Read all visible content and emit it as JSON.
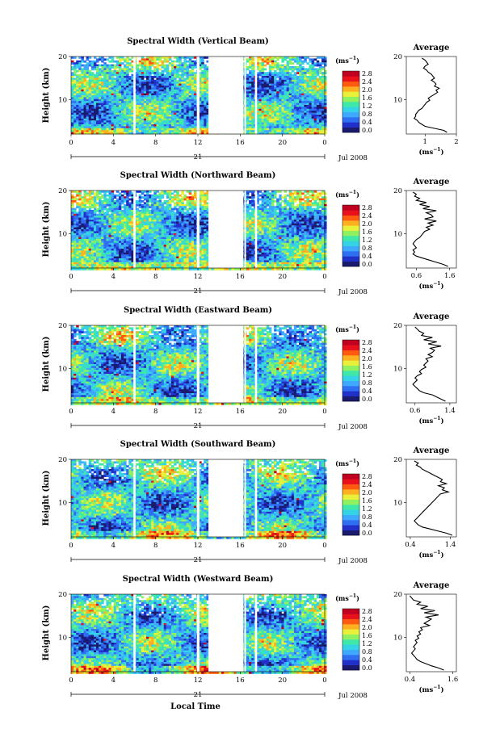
{
  "panels": [
    {
      "title": "Spectral Width (Vertical Beam)",
      "avg_ticks": [
        "1",
        "2"
      ],
      "avg_xlim": [
        0.4,
        2.0
      ],
      "avg_tick_values": [
        1,
        2
      ],
      "profile": [
        0.9,
        1.0,
        1.05,
        1.1,
        1.0,
        0.95,
        1.05,
        1.1,
        1.2,
        1.25,
        1.3,
        1.2,
        1.3,
        1.35,
        1.3,
        1.45,
        1.35,
        1.4,
        1.3,
        1.2,
        1.1,
        1.15,
        1.05,
        1.0,
        0.95,
        0.9,
        0.8,
        0.75,
        0.7,
        0.7,
        0.65,
        0.75,
        0.8,
        0.9,
        1.0,
        1.3,
        1.6,
        1.7
      ]
    },
    {
      "title": "Spectral Width (Northward Beam)",
      "avg_ticks": [
        "0.6",
        "1.6"
      ],
      "avg_xlim": [
        0.3,
        1.8
      ],
      "avg_tick_values": [
        0.6,
        1.6
      ],
      "profile": [
        0.5,
        0.6,
        0.55,
        0.7,
        0.6,
        0.9,
        0.7,
        1.0,
        0.8,
        1.2,
        0.9,
        1.05,
        1.1,
        0.85,
        1.2,
        0.95,
        1.1,
        0.9,
        1.0,
        0.85,
        0.8,
        0.75,
        0.7,
        0.6,
        0.55,
        0.5,
        0.55,
        0.6,
        0.5,
        0.55,
        0.5,
        0.6,
        0.8,
        1.0,
        1.2,
        1.4,
        1.55
      ]
    },
    {
      "title": "Spectral Width (Eastward Beam)",
      "avg_ticks": [
        "0.6",
        "1.4"
      ],
      "avg_xlim": [
        0.4,
        1.55
      ],
      "avg_tick_values": [
        0.6,
        1.4
      ],
      "profile": [
        0.6,
        0.65,
        0.7,
        0.8,
        0.75,
        1.0,
        0.8,
        1.1,
        0.9,
        1.2,
        0.95,
        1.05,
        1.0,
        0.9,
        1.0,
        0.85,
        0.9,
        0.85,
        0.8,
        0.85,
        0.75,
        0.7,
        0.75,
        0.65,
        0.6,
        0.65,
        0.6,
        0.55,
        0.6,
        0.65,
        0.7,
        0.8,
        1.0,
        1.1,
        1.2,
        1.3
      ]
    },
    {
      "title": "Spectral Width (Southward Beam)",
      "avg_ticks": [
        "0.4",
        "1.4"
      ],
      "avg_xlim": [
        0.3,
        1.55
      ],
      "avg_tick_values": [
        0.4,
        1.4
      ],
      "profile": [
        0.5,
        0.6,
        0.55,
        0.65,
        0.7,
        0.8,
        0.9,
        1.0,
        1.1,
        1.2,
        1.15,
        1.3,
        1.1,
        1.25,
        1.2,
        1.35,
        1.15,
        1.1,
        1.05,
        1.0,
        0.95,
        0.9,
        0.85,
        0.8,
        0.75,
        0.7,
        0.65,
        0.6,
        0.55,
        0.5,
        0.55,
        0.6,
        0.7,
        0.9,
        1.1,
        1.3,
        1.45
      ]
    },
    {
      "title": "Spectral Width (Westward Beam)",
      "avg_ticks": [
        "0.4",
        "1.6"
      ],
      "avg_xlim": [
        0.3,
        1.7
      ],
      "avg_tick_values": [
        0.4,
        1.6
      ],
      "profile": [
        0.4,
        0.45,
        0.5,
        0.7,
        0.6,
        0.9,
        0.7,
        1.1,
        0.8,
        1.2,
        0.85,
        1.0,
        0.9,
        0.8,
        0.95,
        0.7,
        0.75,
        0.65,
        0.7,
        0.6,
        0.65,
        0.55,
        0.6,
        0.55,
        0.5,
        0.55,
        0.5,
        0.45,
        0.5,
        0.55,
        0.6,
        0.7,
        0.85,
        1.0,
        1.2,
        1.35
      ]
    }
  ],
  "y_ticks": [
    "20",
    "10"
  ],
  "y_label": "Height (km)",
  "x_ticks": [
    "0",
    "4",
    "8",
    "12",
    "16",
    "20",
    "0"
  ],
  "x_tick_values": [
    0,
    4,
    8,
    12,
    16,
    20,
    24
  ],
  "day_label": "21",
  "date_label": "Jul 2008",
  "x_label": "Local Time",
  "avg_title": "Average",
  "avg_y_ticks": [
    "20",
    "10"
  ],
  "avg_xlabel": "(ms",
  "avg_xlabel_sup": "−1",
  "avg_xlabel_end": ")",
  "cbar_unit": "(ms",
  "cbar_unit_sup": "−1",
  "cbar_unit_end": ")",
  "cbar_ticks": [
    "2.8",
    "2.4",
    "2.0",
    "1.6",
    "1.2",
    "0.8",
    "0.4",
    "0.0"
  ],
  "cbar_colors": [
    "#1a1a6e",
    "#2030c8",
    "#2f6ff2",
    "#3fa8ff",
    "#35d3e6",
    "#3fe8a8",
    "#8ff060",
    "#e8f03a",
    "#ffb020",
    "#ff5a10",
    "#e8101a",
    "#c00020"
  ],
  "data_gaps": [
    [
      5.9,
      6.1
    ],
    [
      11.9,
      12.15
    ],
    [
      13.0,
      16.3
    ],
    [
      16.4,
      16.55
    ],
    [
      17.4,
      17.6
    ]
  ],
  "chart_data": {
    "type": "heatmap",
    "series_count": 5,
    "xlabel": "Local Time",
    "ylabel": "Height (km)",
    "xlim": [
      0,
      24
    ],
    "ylim": [
      2,
      20
    ],
    "colorbar_range": [
      0.0,
      2.8
    ],
    "colorbar_unit": "ms^-1"
  }
}
